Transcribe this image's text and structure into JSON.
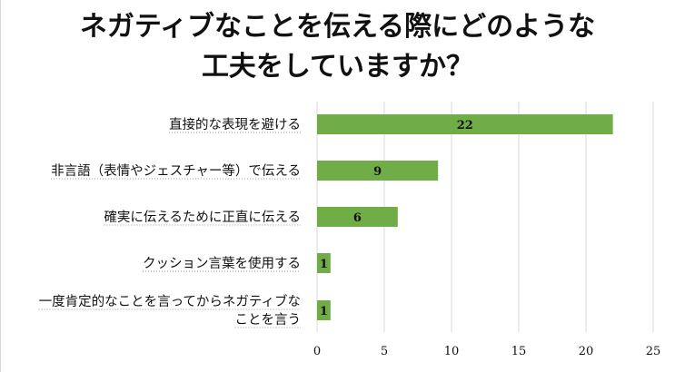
{
  "title_lines": [
    "ネガティブなことを伝える際にどのような",
    "工夫をしていますか？"
  ],
  "colors": {
    "bar": "#70ad47",
    "grid": "#d9d9d9",
    "underline": "#999999"
  },
  "chart_data": {
    "type": "bar",
    "orientation": "horizontal",
    "title": "ネガティブなことを伝える際にどのような工夫をしていますか？",
    "categories": [
      [
        "直接的な表現を避ける"
      ],
      [
        "非言語（表情やジェスチャー等）で伝える"
      ],
      [
        "確実に伝えるために正直に伝える"
      ],
      [
        "クッション言葉を使用する"
      ],
      [
        "一度肯定的なことを言ってからネガティブな",
        "ことを言う"
      ]
    ],
    "values": [
      22,
      9,
      6,
      1,
      1
    ],
    "xlim": [
      0,
      25
    ],
    "xticks": [
      0,
      5,
      10,
      15,
      20,
      25
    ],
    "grid": true,
    "data_labels": true,
    "legend": "none"
  }
}
